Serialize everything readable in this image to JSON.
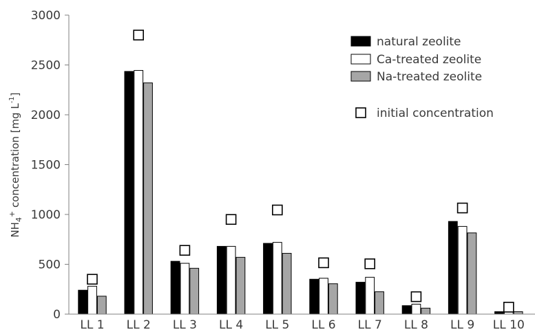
{
  "chart_data": {
    "type": "bar",
    "ylabel": {
      "prefix": "NH",
      "sub": "4",
      "sup": "+",
      "middle": " concentration [mg L",
      "sup2": "-1",
      "suffix": "]"
    },
    "ylim": [
      0,
      3000
    ],
    "yticks": [
      "0",
      "500",
      "1000",
      "1500",
      "2000",
      "2500",
      "3000"
    ],
    "yticks_values": [
      0,
      500,
      1000,
      1500,
      2000,
      2500,
      3000
    ],
    "categories": [
      "LL 1",
      "LL 2",
      "LL 3",
      "LL 4",
      "LL 5",
      "LL 6",
      "LL 7",
      "LL 8",
      "LL 9",
      "LL 10"
    ],
    "series": [
      {
        "name": "natural zeolite",
        "color": "#000000",
        "values": [
          240,
          2435,
          530,
          680,
          710,
          350,
          320,
          85,
          930,
          25
        ]
      },
      {
        "name": "Ca-treated zeolite",
        "color": "#ffffff",
        "values": [
          280,
          2445,
          510,
          680,
          720,
          360,
          370,
          100,
          880,
          30
        ]
      },
      {
        "name": "Na-treated zeolite",
        "color": "#a6a6a6",
        "values": [
          180,
          2320,
          460,
          570,
          610,
          305,
          225,
          60,
          815,
          25
        ]
      }
    ],
    "markers": {
      "name": "initial concentration",
      "values": [
        350,
        2800,
        640,
        950,
        1045,
        515,
        505,
        175,
        1065,
        70
      ]
    },
    "legend_position": "top-right",
    "grid": false
  }
}
